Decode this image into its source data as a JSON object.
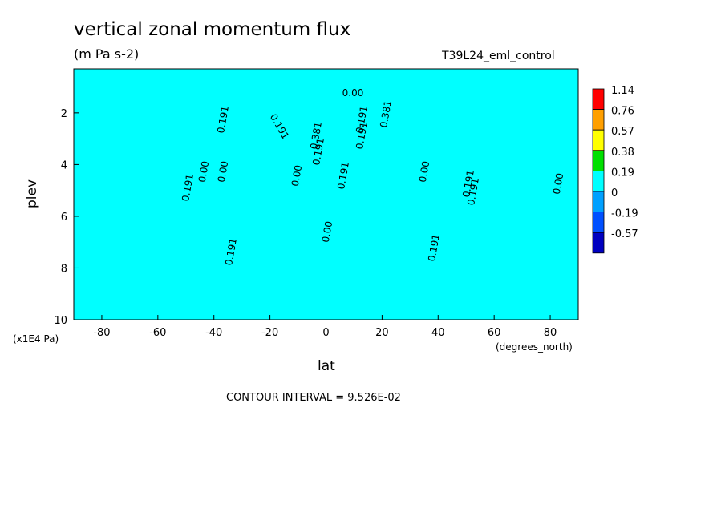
{
  "chart_data": {
    "type": "heatmap",
    "title": "vertical zonal momentum flux",
    "units": "(m Pa s-2)",
    "run_name": "T39L24_eml_control",
    "xlabel": "lat",
    "xunit": "(degrees_north)",
    "ylabel": "plev",
    "yunit": "(x1E4 Pa)",
    "x_range": [
      -90,
      90
    ],
    "y_range": [
      0.3,
      10
    ],
    "y_axis_inverted": true,
    "x_ticks": [
      "-80",
      "-60",
      "-40",
      "-20",
      "0",
      "20",
      "40",
      "60",
      "80"
    ],
    "y_ticks": [
      "2",
      "4",
      "6",
      "8",
      "10"
    ],
    "contour_interval_text": "CONTOUR INTERVAL = 9.526E-02",
    "contour_labels": [
      "0.00",
      "0.191",
      "0.191",
      "0.191",
      "0.00",
      "0.00",
      "0.00",
      "0.191",
      "0.381",
      "0.191",
      "0.00",
      "0.191",
      "0.381",
      "0.191",
      "0.191",
      "0.00",
      "0.191",
      "0.191",
      "0.191",
      "0.00"
    ],
    "colorbar": {
      "levels": [
        "1.14",
        "0.76",
        "0.57",
        "0.38",
        "0.19",
        "0",
        "-0.19",
        "-0.57"
      ],
      "colors": [
        "#ff0000",
        "#ff9f00",
        "#ffff00",
        "#00e000",
        "#00ffff",
        "#00a0ff",
        "#0050ff",
        "#0000c0"
      ]
    }
  }
}
